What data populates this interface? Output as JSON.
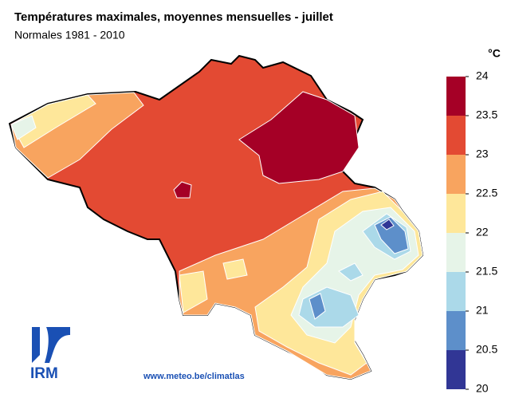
{
  "header": {
    "title": "Températures maximales, moyennes mensuelles - juillet",
    "subtitle": "Normales 1981 - 2010"
  },
  "legend": {
    "unit": "°C",
    "ticks": [
      24,
      23.5,
      23,
      22.5,
      22,
      21.5,
      21,
      20.5,
      20
    ],
    "colors": [
      "#a50026",
      "#e34a33",
      "#f8a45f",
      "#fee79a",
      "#e6f4e8",
      "#abd9e9",
      "#5d8fca",
      "#313695"
    ]
  },
  "logo": "IRM",
  "footer": "www.meteo.be/climatlas"
}
